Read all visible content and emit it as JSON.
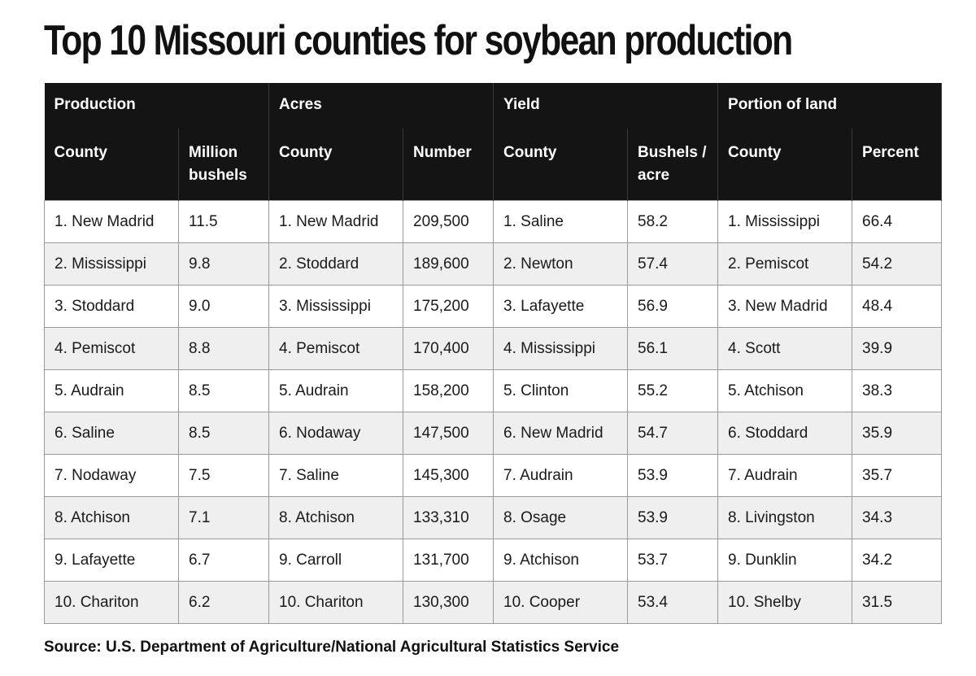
{
  "title": "Top 10 Missouri counties for soybean production",
  "groups": [
    {
      "label": "Production",
      "cols": [
        "County",
        "Million bushels"
      ]
    },
    {
      "label": "Acres",
      "cols": [
        "County",
        "Number"
      ]
    },
    {
      "label": "Yield",
      "cols": [
        "County",
        "Bushels / acre"
      ]
    },
    {
      "label": "Portion of land",
      "cols": [
        "County",
        "Percent"
      ]
    }
  ],
  "rows": [
    [
      "1. New Madrid",
      "11.5",
      "1. New Madrid",
      "209,500",
      "1. Saline",
      "58.2",
      "1. Mississippi",
      "66.4"
    ],
    [
      "2. Mississippi",
      "9.8",
      "2. Stoddard",
      "189,600",
      "2. Newton",
      "57.4",
      "2. Pemiscot",
      "54.2"
    ],
    [
      "3. Stoddard",
      "9.0",
      "3. Mississippi",
      "175,200",
      "3. Lafayette",
      "56.9",
      "3. New Madrid",
      "48.4"
    ],
    [
      "4. Pemiscot",
      "8.8",
      "4. Pemiscot",
      "170,400",
      "4. Mississippi",
      "56.1",
      "4. Scott",
      "39.9"
    ],
    [
      "5. Audrain",
      "8.5",
      "5. Audrain",
      "158,200",
      "5. Clinton",
      "55.2",
      "5. Atchison",
      "38.3"
    ],
    [
      "6. Saline",
      "8.5",
      "6. Nodaway",
      "147,500",
      "6. New Madrid",
      "54.7",
      "6. Stoddard",
      "35.9"
    ],
    [
      "7. Nodaway",
      "7.5",
      "7. Saline",
      "145,300",
      "7. Audrain",
      "53.9",
      "7. Audrain",
      "35.7"
    ],
    [
      "8. Atchison",
      "7.1",
      "8. Atchison",
      "133,310",
      "8. Osage",
      "53.9",
      "8. Livingston",
      "34.3"
    ],
    [
      "9. Lafayette",
      "6.7",
      "9. Carroll",
      "131,700",
      "9. Atchison",
      "53.7",
      "9. Dunklin",
      "34.2"
    ],
    [
      "10. Chariton",
      "6.2",
      "10. Chariton",
      "130,300",
      "10. Cooper",
      "53.4",
      "10. Shelby",
      "31.5"
    ]
  ],
  "source": "Source: U.S. Department of Agriculture/National Agricultural Statistics Service"
}
